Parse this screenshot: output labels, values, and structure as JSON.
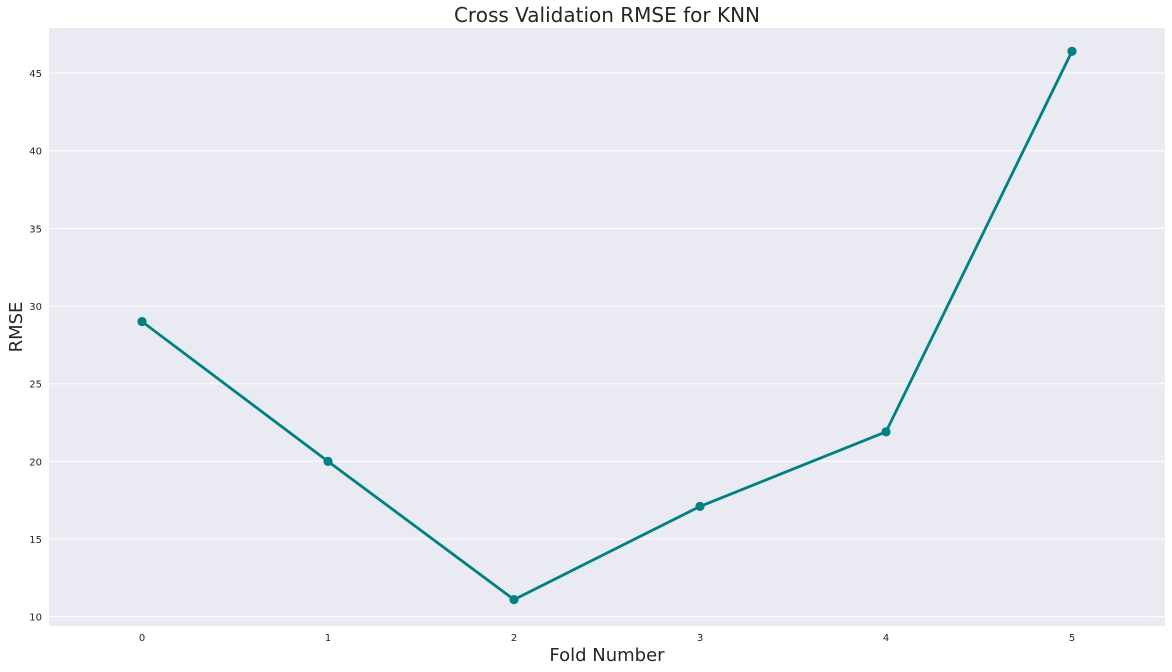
{
  "chart_data": {
    "type": "line",
    "title": "Cross Validation RMSE for KNN",
    "xlabel": "Fold Number",
    "ylabel": "RMSE",
    "categories": [
      "0",
      "1",
      "2",
      "3",
      "4",
      "5"
    ],
    "values": [
      29.0,
      20.0,
      11.1,
      17.1,
      21.9,
      46.4
    ],
    "yticks": [
      10,
      15,
      20,
      25,
      30,
      35,
      40,
      45
    ],
    "ylim": [
      9.4,
      47.9
    ],
    "grid": true,
    "legend": "none",
    "colors": {
      "series": "#008080",
      "plot_background": "#eaeaf2",
      "grid": "#ffffff",
      "text": "#262626"
    }
  }
}
